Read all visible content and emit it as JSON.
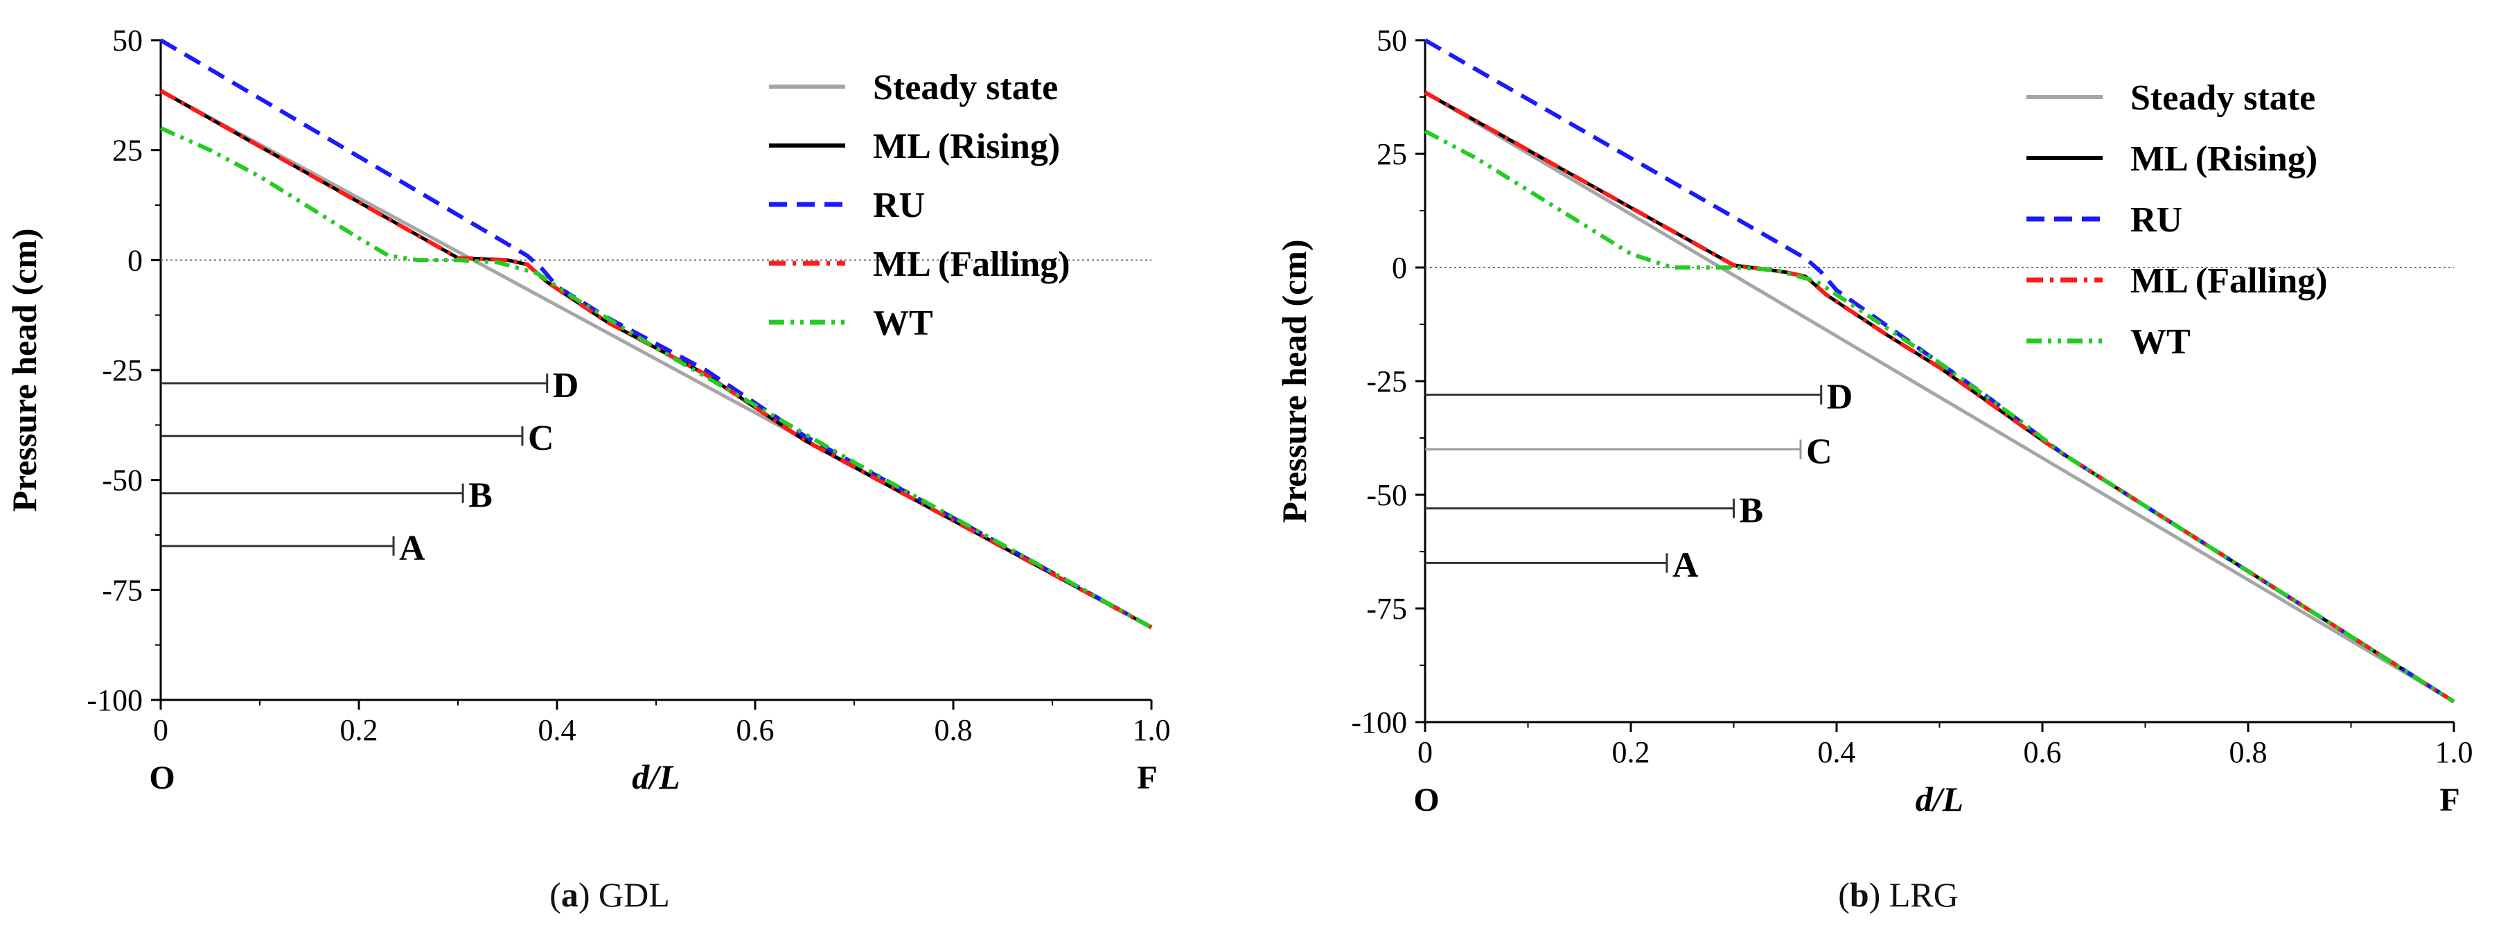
{
  "chart_data": [
    {
      "type": "line",
      "panel": "a",
      "caption_letter": "a",
      "caption_text": "GDL",
      "xlabel": "d/L",
      "ylabel": "Pressure head (cm)",
      "xlim": [
        0,
        1.0
      ],
      "ylim": [
        -100,
        50
      ],
      "x_ticks": [
        0,
        0.2,
        0.4,
        0.6,
        0.8,
        1.0
      ],
      "x_tick_labels": [
        "0",
        "0.2",
        "0.4",
        "0.6",
        "0.8",
        "1.0"
      ],
      "y_ticks": [
        50,
        25,
        0,
        -25,
        -50,
        -75,
        -100
      ],
      "y_tick_labels": [
        "50",
        "25",
        "0",
        "-25",
        "-50",
        "-75",
        "-100"
      ],
      "x_end_labels": {
        "start": "O",
        "end": "F"
      },
      "legend_position": "top-right",
      "series": [
        {
          "name": "Steady state",
          "color": "#a6a6a6",
          "dash": "solid",
          "points": [
            [
              0,
              38.5
            ],
            [
              1.0,
              -83.5
            ]
          ]
        },
        {
          "name": "ML (Rising)",
          "color": "#000000",
          "dash": "solid",
          "points": [
            [
              0,
              38.5
            ],
            [
              0.3,
              0.5
            ],
            [
              0.35,
              0
            ],
            [
              0.37,
              -1
            ],
            [
              0.39,
              -5
            ],
            [
              0.45,
              -14
            ],
            [
              0.55,
              -26
            ],
            [
              0.65,
              -41
            ],
            [
              1.0,
              -83.5
            ]
          ]
        },
        {
          "name": "RU",
          "color": "#1a1aff",
          "dash": "dash",
          "points": [
            [
              0,
              50
            ],
            [
              0.37,
              1
            ],
            [
              0.385,
              -2
            ],
            [
              0.4,
              -6
            ],
            [
              0.45,
              -13
            ],
            [
              0.55,
              -25
            ],
            [
              0.65,
              -40
            ],
            [
              1.0,
              -83.5
            ]
          ]
        },
        {
          "name": "ML (Falling)",
          "color": "#ff1a1a",
          "dash": "dashdot",
          "points": [
            [
              0,
              38.5
            ],
            [
              0.3,
              0.5
            ],
            [
              0.35,
              0
            ],
            [
              0.37,
              -1
            ],
            [
              0.39,
              -5
            ],
            [
              0.45,
              -14
            ],
            [
              0.55,
              -26
            ],
            [
              0.65,
              -41
            ],
            [
              1.0,
              -83.5
            ]
          ]
        },
        {
          "name": "WT",
          "color": "#22cc22",
          "dash": "dashdotdot",
          "points": [
            [
              0,
              30
            ],
            [
              0.05,
              25
            ],
            [
              0.1,
              19
            ],
            [
              0.15,
              12
            ],
            [
              0.2,
              5
            ],
            [
              0.23,
              1
            ],
            [
              0.26,
              0
            ],
            [
              0.3,
              0
            ],
            [
              0.34,
              -0.5
            ],
            [
              0.38,
              -3
            ],
            [
              0.42,
              -9
            ],
            [
              0.5,
              -20
            ],
            [
              0.6,
              -33
            ],
            [
              0.7,
              -46
            ],
            [
              1.0,
              -83.5
            ]
          ]
        }
      ],
      "markers": [
        {
          "label": "D",
          "y": -28,
          "x_end": 0.39,
          "color": "#333333"
        },
        {
          "label": "C",
          "y": -40,
          "x_end": 0.365,
          "color": "#333333"
        },
        {
          "label": "B",
          "y": -53,
          "x_end": 0.305,
          "color": "#333333"
        },
        {
          "label": "A",
          "y": -65,
          "x_end": 0.235,
          "color": "#333333"
        }
      ]
    },
    {
      "type": "line",
      "panel": "b",
      "caption_letter": "b",
      "caption_text": "LRG",
      "xlabel": "d/L",
      "ylabel": "Pressure head (cm)",
      "xlim": [
        0,
        1.0
      ],
      "ylim": [
        -100,
        50
      ],
      "x_ticks": [
        0,
        0.2,
        0.4,
        0.6,
        0.8,
        1.0
      ],
      "x_tick_labels": [
        "0",
        "0.2",
        "0.4",
        "0.6",
        "0.8",
        "1.0"
      ],
      "y_ticks": [
        50,
        25,
        0,
        -25,
        -50,
        -75,
        -100
      ],
      "y_tick_labels": [
        "50",
        "25",
        "0",
        "-25",
        "-50",
        "-75",
        "-100"
      ],
      "x_end_labels": {
        "start": "O",
        "end": "F"
      },
      "legend_position": "top-right",
      "series": [
        {
          "name": "Steady state",
          "color": "#a6a6a6",
          "dash": "solid",
          "points": [
            [
              0,
              38.5
            ],
            [
              1.0,
              -95.5
            ]
          ]
        },
        {
          "name": "ML (Rising)",
          "color": "#000000",
          "dash": "solid",
          "points": [
            [
              0,
              38.5
            ],
            [
              0.3,
              0.5
            ],
            [
              0.35,
              -1
            ],
            [
              0.37,
              -2
            ],
            [
              0.39,
              -6
            ],
            [
              0.45,
              -15
            ],
            [
              0.5,
              -22
            ],
            [
              0.6,
              -38
            ],
            [
              0.62,
              -41
            ],
            [
              1.0,
              -95.5
            ]
          ]
        },
        {
          "name": "RU",
          "color": "#1a1aff",
          "dash": "dash",
          "points": [
            [
              0,
              50
            ],
            [
              0.37,
              2
            ],
            [
              0.385,
              -1
            ],
            [
              0.4,
              -5
            ],
            [
              0.45,
              -13
            ],
            [
              0.55,
              -29
            ],
            [
              0.62,
              -41
            ],
            [
              1.0,
              -95.5
            ]
          ]
        },
        {
          "name": "ML (Falling)",
          "color": "#ff1a1a",
          "dash": "dashdot",
          "points": [
            [
              0,
              38.5
            ],
            [
              0.3,
              0.5
            ],
            [
              0.35,
              -1
            ],
            [
              0.37,
              -2
            ],
            [
              0.39,
              -6
            ],
            [
              0.45,
              -15
            ],
            [
              0.5,
              -22
            ],
            [
              0.6,
              -38
            ],
            [
              0.62,
              -41
            ],
            [
              1.0,
              -95.5
            ]
          ]
        },
        {
          "name": "WT",
          "color": "#22cc22",
          "dash": "dashdotdot",
          "points": [
            [
              0,
              30
            ],
            [
              0.05,
              24
            ],
            [
              0.1,
              17
            ],
            [
              0.15,
              10
            ],
            [
              0.2,
              3
            ],
            [
              0.24,
              0
            ],
            [
              0.3,
              0
            ],
            [
              0.34,
              -0.5
            ],
            [
              0.38,
              -3
            ],
            [
              0.42,
              -9
            ],
            [
              0.5,
              -21
            ],
            [
              0.58,
              -34
            ],
            [
              0.62,
              -41
            ],
            [
              1.0,
              -95.5
            ]
          ]
        }
      ],
      "markers": [
        {
          "label": "D",
          "y": -28,
          "x_end": 0.385,
          "color": "#333333"
        },
        {
          "label": "C",
          "y": -40,
          "x_end": 0.365,
          "color": "#999999"
        },
        {
          "label": "B",
          "y": -53,
          "x_end": 0.3,
          "color": "#333333"
        },
        {
          "label": "A",
          "y": -65,
          "x_end": 0.235,
          "color": "#333333"
        }
      ]
    }
  ]
}
